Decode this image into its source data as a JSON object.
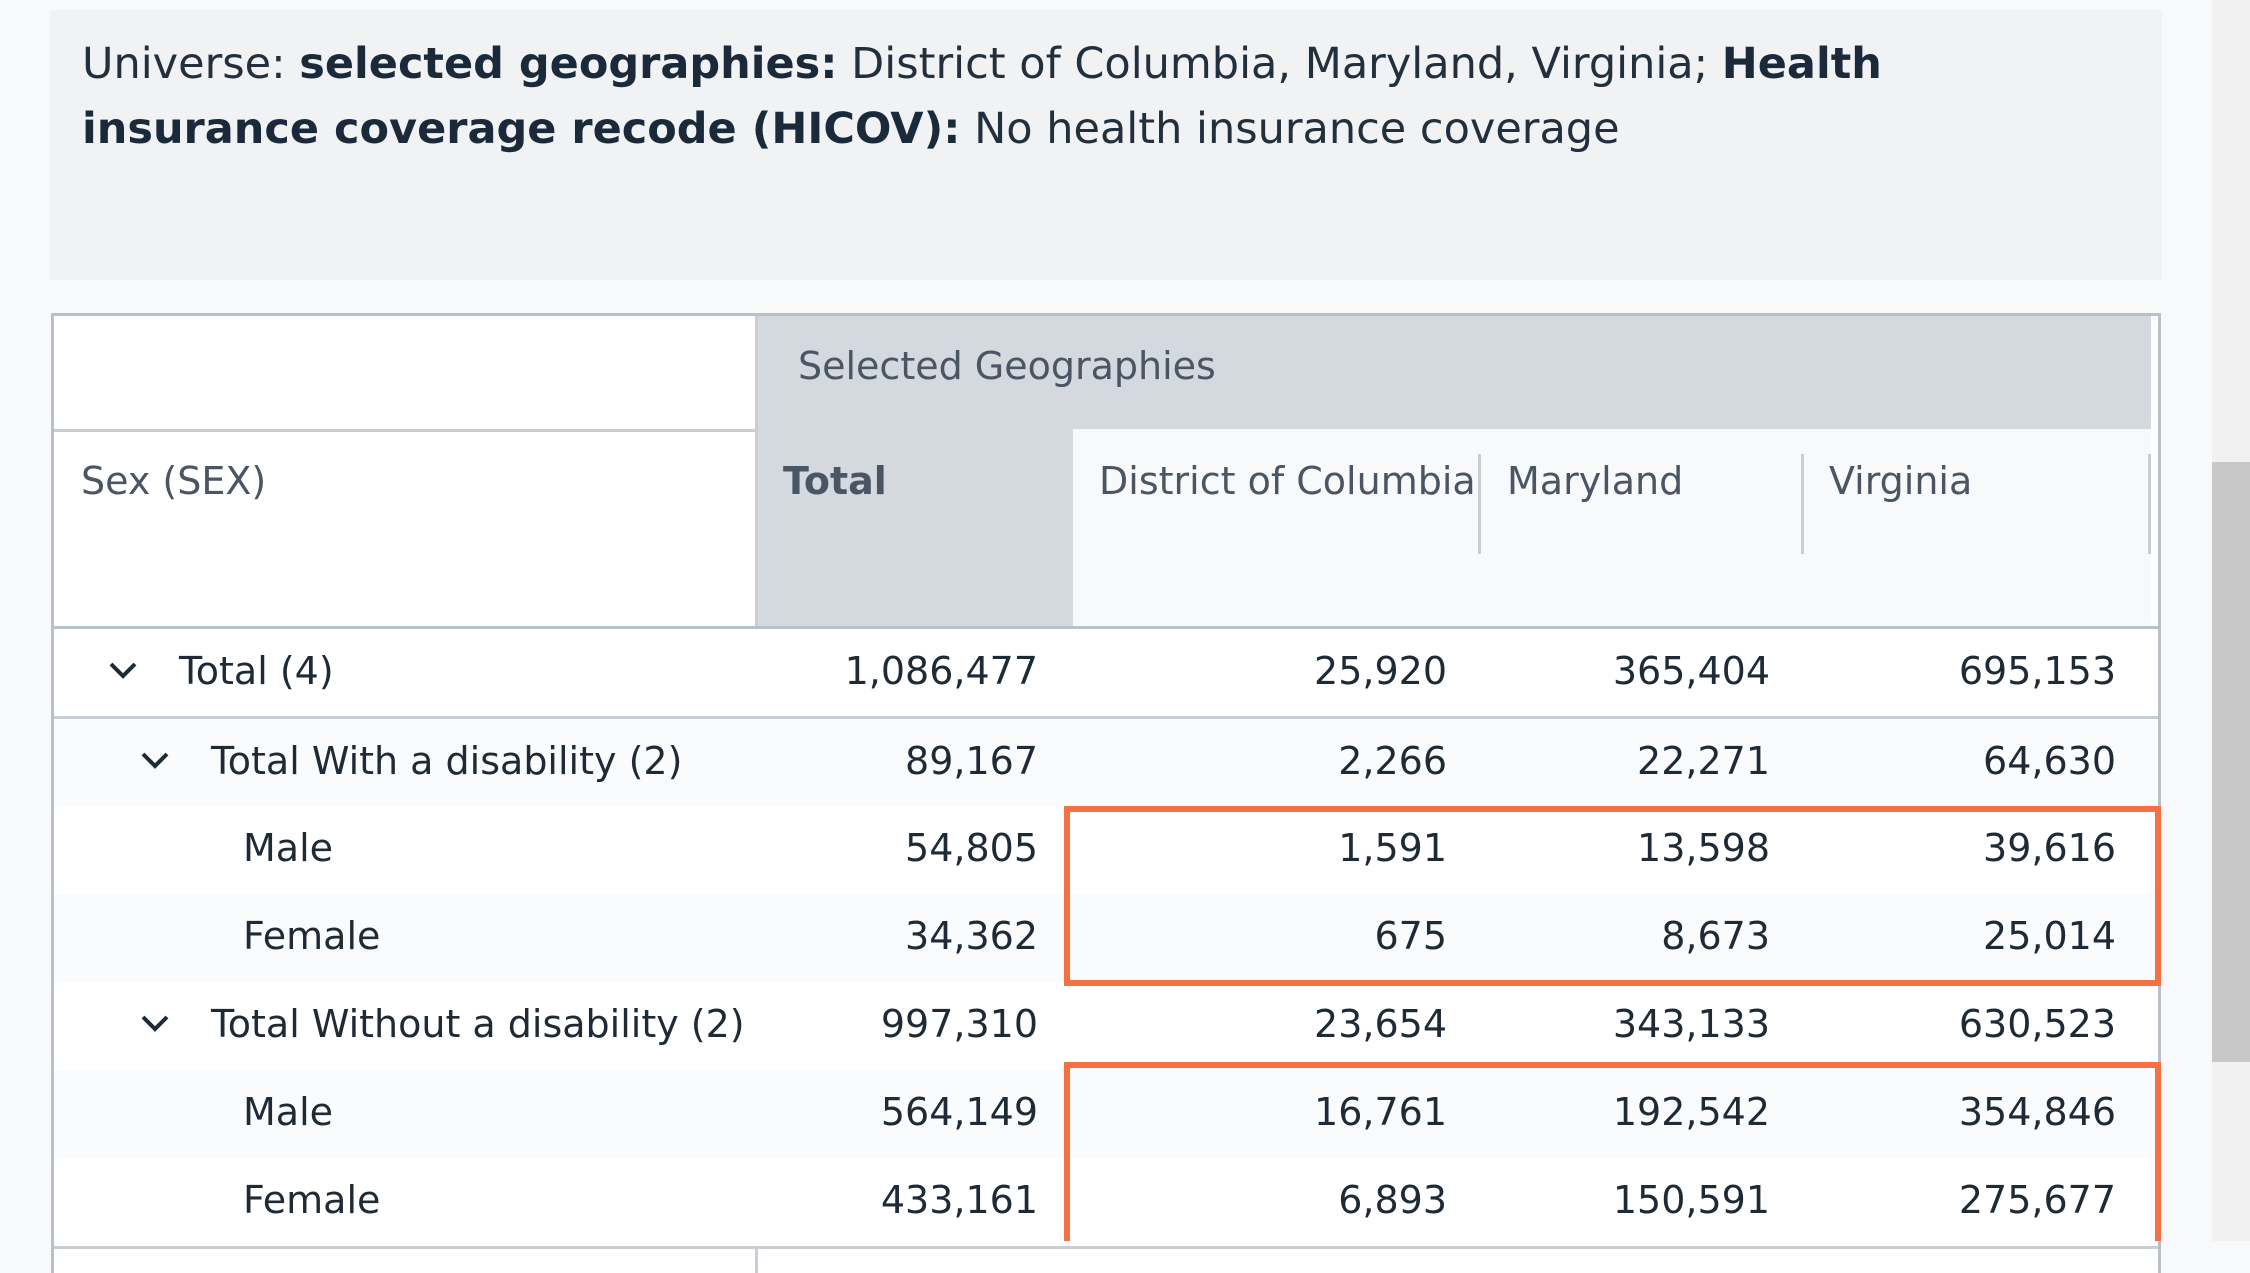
{
  "universe": {
    "prefix": "Universe: ",
    "geo_label": "selected geographies:",
    "geo_value": " District of Columbia, Maryland, Virginia; ",
    "filter_label": "Health insurance coverage recode (HICOV):",
    "filter_value": " No health insurance coverage"
  },
  "table": {
    "group_header": "Selected Geographies",
    "row_header": "Sex (SEX)",
    "columns": [
      "Total",
      "District of Columbia",
      "Maryland",
      "Virginia"
    ],
    "rows": [
      {
        "label": "Total (4)",
        "values": [
          "1,086,477",
          "25,920",
          "365,404",
          "695,153"
        ]
      },
      {
        "label": "Total With a disability (2)",
        "values": [
          "89,167",
          "2,266",
          "22,271",
          "64,630"
        ]
      },
      {
        "label": "Male",
        "values": [
          "54,805",
          "1,591",
          "13,598",
          "39,616"
        ]
      },
      {
        "label": "Female",
        "values": [
          "34,362",
          "675",
          "8,673",
          "25,014"
        ]
      },
      {
        "label": "Total Without a disability (2)",
        "values": [
          "997,310",
          "23,654",
          "343,133",
          "630,523"
        ]
      },
      {
        "label": "Male",
        "values": [
          "564,149",
          "16,761",
          "192,542",
          "354,846"
        ]
      },
      {
        "label": "Female",
        "values": [
          "433,161",
          "6,893",
          "150,591",
          "275,677"
        ]
      }
    ]
  },
  "colors": {
    "highlight": "#f57042",
    "header_bg": "#d3d9df"
  },
  "icons": [
    "chevron-down-icon"
  ]
}
